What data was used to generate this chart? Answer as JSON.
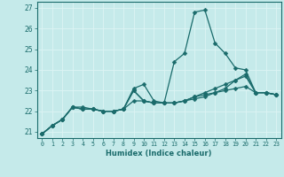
{
  "title": "",
  "xlabel": "Humidex (Indice chaleur)",
  "bg_color": "#c5eaea",
  "grid_color": "#e8f8f8",
  "line_color": "#1a6b6b",
  "x": [
    0,
    1,
    2,
    3,
    4,
    5,
    6,
    7,
    8,
    9,
    10,
    11,
    12,
    13,
    14,
    15,
    16,
    17,
    18,
    19,
    20,
    21,
    22,
    23
  ],
  "series": [
    [
      20.9,
      21.3,
      21.6,
      22.2,
      22.2,
      22.1,
      22.0,
      22.0,
      22.1,
      23.1,
      23.3,
      22.5,
      22.4,
      24.4,
      24.8,
      26.8,
      26.9,
      25.3,
      24.8,
      24.1,
      24.0,
      22.9,
      22.9,
      22.8
    ],
    [
      20.9,
      21.3,
      21.6,
      22.2,
      22.1,
      22.1,
      22.0,
      22.0,
      22.1,
      23.0,
      22.5,
      22.4,
      22.4,
      22.4,
      22.5,
      22.6,
      22.7,
      22.9,
      23.1,
      23.5,
      23.8,
      22.9,
      22.9,
      22.8
    ],
    [
      20.9,
      21.3,
      21.6,
      22.2,
      22.1,
      22.1,
      22.0,
      22.0,
      22.1,
      23.0,
      22.5,
      22.4,
      22.4,
      22.4,
      22.5,
      22.7,
      22.9,
      23.1,
      23.3,
      23.5,
      23.7,
      22.9,
      22.9,
      22.8
    ],
    [
      20.9,
      21.3,
      21.6,
      22.2,
      22.1,
      22.1,
      22.0,
      22.0,
      22.1,
      22.5,
      22.5,
      22.4,
      22.4,
      22.4,
      22.5,
      22.7,
      22.8,
      22.9,
      23.0,
      23.1,
      23.2,
      22.9,
      22.9,
      22.8
    ]
  ],
  "ylim": [
    20.7,
    27.3
  ],
  "yticks": [
    21,
    22,
    23,
    24,
    25,
    26,
    27
  ],
  "xlim": [
    -0.5,
    23.5
  ],
  "markersize": 2.5,
  "linewidth": 0.9
}
